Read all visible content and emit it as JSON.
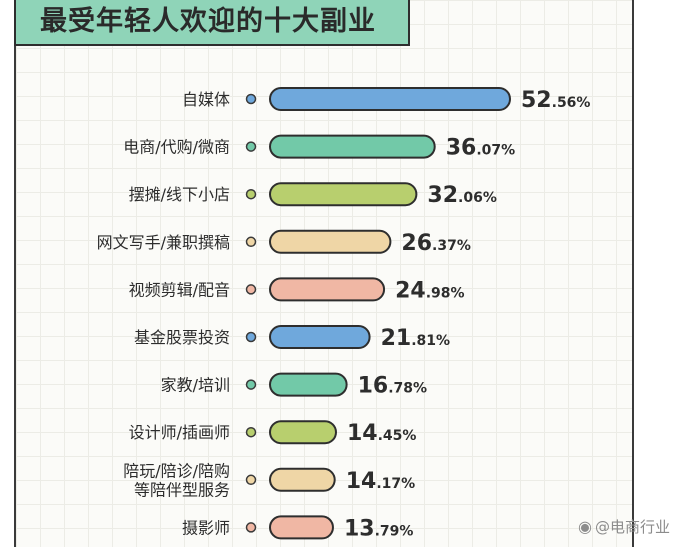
{
  "title": "最受年轻人欢迎的十大副业",
  "watermark": "@电商行业",
  "chart_data": {
    "type": "bar",
    "orientation": "horizontal",
    "title": "最受年轻人欢迎的十大副业",
    "categories": [
      [
        "自媒体"
      ],
      [
        "电商/代购/微商"
      ],
      [
        "摆摊/线下小店"
      ],
      [
        "网文写手/兼职撰稿"
      ],
      [
        "视频剪辑/配音"
      ],
      [
        "基金股票投资"
      ],
      [
        "家教/培训"
      ],
      [
        "设计师/插画师"
      ],
      [
        "陪玩/陪诊/陪购",
        "等陪伴型服务"
      ],
      [
        "摄影师"
      ]
    ],
    "values": [
      52.56,
      36.07,
      32.06,
      26.37,
      24.98,
      21.81,
      16.78,
      14.45,
      14.17,
      13.79
    ],
    "value_suffix": "%",
    "colors": [
      "#6fa8dc",
      "#72c9a8",
      "#b8cf6e",
      "#efd6a6",
      "#f0b7a4",
      "#6fa8dc",
      "#72c9a8",
      "#b8cf6e",
      "#efd6a6",
      "#f0b7a4"
    ],
    "xlabel": "",
    "ylabel": "",
    "xlim": [
      0,
      60
    ],
    "grid": true
  }
}
